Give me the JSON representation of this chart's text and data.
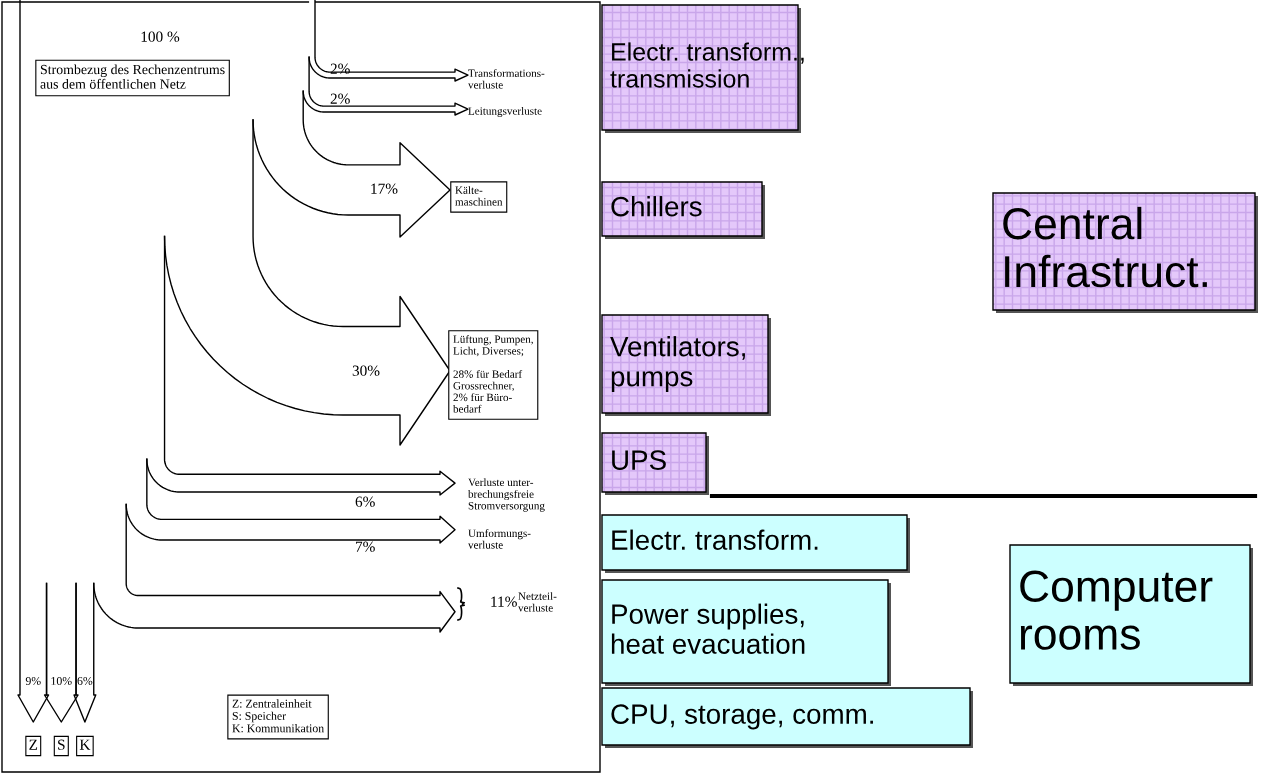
{
  "chart_data": {
    "type": "other",
    "categories": [
      "Transformations-\nverluste",
      "Leitungsverluste",
      "Kälte-\nmaschinen",
      "Lüftung, Pumpen,\nLicht, Diverses;\n\n28% für Bedarf\nGrossrechner,\n2% für Büro-\nbedarf",
      "Verluste unter-\nbrechungsfreie\nStromversorgung",
      "Umformungs-\nverluste",
      "Netzteil-\nverluste",
      "Z",
      "S",
      "K"
    ],
    "values": [
      2,
      2,
      17,
      30,
      6,
      7,
      11,
      9,
      10,
      6
    ],
    "value_labels": [
      "2%",
      "2%",
      "17%",
      "30%",
      "6%",
      "7%",
      "11%",
      "9%",
      "10%",
      "6%"
    ],
    "annotations": [
      "100 %",
      "Strombezug des Rechenzentrums\naus dem öffentlichen Netz",
      "Z: Zentraleinheit\nS: Speicher\nK: Kommunikation",
      "Electr. transform.,\ntransmission",
      "Chillers",
      "Ventilators,\npumps",
      "UPS",
      "Central\nInfrastruct.",
      "Electr. transform.",
      "Power supplies,\nheat evacuation",
      "CPU, storage, comm.",
      "Computer\nrooms"
    ]
  }
}
